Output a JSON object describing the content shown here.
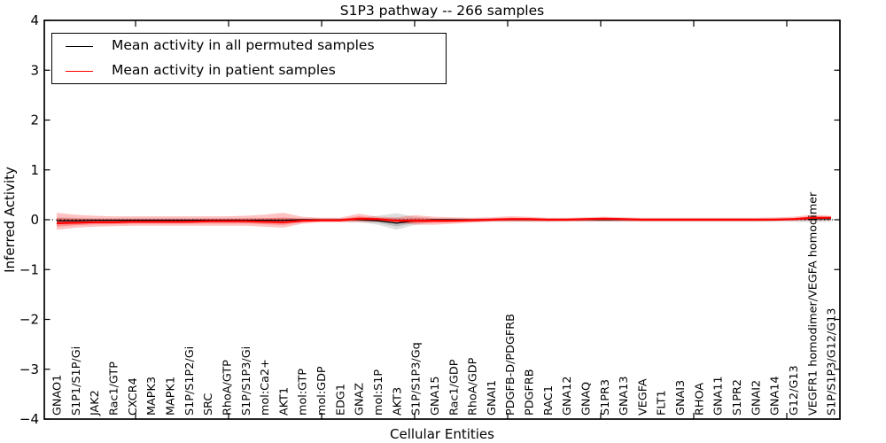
{
  "title": "S1P3 pathway -- 266 samples",
  "axes": {
    "xlabel": "Cellular Entities",
    "ylabel": "Inferred Activity",
    "ytick_labels": [
      "4",
      "3",
      "2",
      "1",
      "0",
      "−1",
      "−2",
      "−3",
      "−4"
    ],
    "ytick_values": [
      4,
      3,
      2,
      1,
      0,
      -1,
      -2,
      -3,
      -4
    ]
  },
  "legend": {
    "items": [
      {
        "label": "Mean activity in all permuted samples",
        "color": "#000000"
      },
      {
        "label": "Mean activity in patient samples",
        "color": "#ff0000"
      }
    ]
  },
  "chart_data": {
    "type": "line",
    "title": "S1P3 pathway -- 266 samples",
    "xlabel": "Cellular Entities",
    "ylabel": "Inferred Activity",
    "ylim": [
      -4,
      4
    ],
    "grid": false,
    "legend_position": "upper left",
    "zero_reference_line": true,
    "categories": [
      "GNAO1",
      "S1P1/S1P/Gi",
      "JAK2",
      "Rac1/GTP",
      "CXCR4",
      "MAPK3",
      "MAPK1",
      "S1P/S1P2/Gi",
      "SRC",
      "RhoA/GTP",
      "S1P/S1P3/Gi",
      "mol:Ca2+",
      "AKT1",
      "mol:GTP",
      "mol:GDP",
      "EDG1",
      "GNAZ",
      "mol:S1P",
      "AKT3",
      "S1P/S1P3/Gq",
      "GNA15",
      "Rac1/GDP",
      "RhoA/GDP",
      "GNAI1",
      "PDGFB-D/PDGFRB",
      "PDGFRB",
      "RAC1",
      "GNA12",
      "GNAQ",
      "S1PR3",
      "GNA13",
      "VEGFA",
      "FLT1",
      "GNAI3",
      "RHOA",
      "GNA11",
      "S1PR2",
      "GNAI2",
      "GNA14",
      "G12/G13",
      "VEGFR1 homodimer/VEGFA homodimer",
      "S1P/S1P3/G12/G13"
    ],
    "series": [
      {
        "name": "Mean activity in all permuted samples",
        "color": "#000000",
        "values": [
          -0.02,
          -0.02,
          -0.01,
          -0.01,
          -0.01,
          -0.01,
          -0.01,
          -0.01,
          -0.01,
          -0.01,
          -0.01,
          -0.01,
          -0.01,
          0,
          0,
          0,
          0,
          -0.02,
          -0.07,
          -0.02,
          0,
          0,
          0,
          0,
          0,
          0,
          0,
          0,
          0,
          0,
          0,
          0,
          0,
          0,
          0,
          0,
          0,
          0,
          0,
          0.01,
          0.02,
          0.02
        ]
      },
      {
        "name": "Mean activity in patient samples",
        "color": "#ff0000",
        "values": [
          -0.07,
          -0.06,
          -0.05,
          -0.05,
          -0.04,
          -0.04,
          -0.04,
          -0.04,
          -0.03,
          -0.03,
          -0.03,
          -0.04,
          -0.05,
          -0.02,
          -0.01,
          -0.01,
          0.02,
          0.01,
          -0.02,
          -0.02,
          -0.02,
          -0.02,
          -0.01,
          0,
          0.01,
          0.01,
          0,
          0,
          0.01,
          0.02,
          0.01,
          0,
          0,
          0,
          0,
          0,
          0,
          0,
          0,
          0.01,
          0.04,
          0.04
        ]
      }
    ],
    "bands": [
      {
        "name": "permuted-samples-range",
        "color": "rgba(0,0,0,0.13)",
        "inner_color": "rgba(0,0,0,0.15)",
        "upper": [
          0.05,
          0.04,
          0.03,
          0.03,
          0.03,
          0.03,
          0.03,
          0.03,
          0.03,
          0.03,
          0.03,
          0.03,
          0.03,
          0.03,
          0.03,
          0.03,
          0.04,
          0.08,
          0.13,
          0.06,
          0.03,
          0.03,
          0.03,
          0.03,
          0.03,
          0.03,
          0.03,
          0.03,
          0.03,
          0.03,
          0.03,
          0.03,
          0.03,
          0.03,
          0.03,
          0.03,
          0.03,
          0.03,
          0.03,
          0.03,
          0.05,
          0.04
        ],
        "lower": [
          -0.08,
          -0.06,
          -0.04,
          -0.04,
          -0.04,
          -0.04,
          -0.04,
          -0.04,
          -0.04,
          -0.04,
          -0.04,
          -0.04,
          -0.04,
          -0.04,
          -0.04,
          -0.04,
          -0.05,
          -0.1,
          -0.2,
          -0.1,
          -0.04,
          -0.04,
          -0.04,
          -0.04,
          -0.04,
          -0.04,
          -0.04,
          -0.04,
          -0.04,
          -0.04,
          -0.04,
          -0.04,
          -0.04,
          -0.04,
          -0.04,
          -0.04,
          -0.04,
          -0.04,
          -0.04,
          -0.04,
          -0.05,
          -0.04
        ]
      },
      {
        "name": "patient-samples-range",
        "color": "rgba(255,0,0,0.24)",
        "inner_color": "rgba(255,0,0,0.28)",
        "upper": [
          0.14,
          0.1,
          0.08,
          0.07,
          0.07,
          0.07,
          0.07,
          0.07,
          0.07,
          0.07,
          0.08,
          0.1,
          0.14,
          0.06,
          0.04,
          0.04,
          0.12,
          0.06,
          0.05,
          0.09,
          0.06,
          0.05,
          0.04,
          0.05,
          0.07,
          0.06,
          0.04,
          0.04,
          0.05,
          0.06,
          0.05,
          0.04,
          0.04,
          0.04,
          0.04,
          0.04,
          0.04,
          0.04,
          0.05,
          0.06,
          0.1,
          0.08
        ],
        "lower": [
          -0.2,
          -0.16,
          -0.14,
          -0.13,
          -0.12,
          -0.12,
          -0.12,
          -0.12,
          -0.12,
          -0.12,
          -0.12,
          -0.14,
          -0.16,
          -0.08,
          -0.05,
          -0.05,
          -0.05,
          -0.04,
          -0.06,
          -0.1,
          -0.1,
          -0.08,
          -0.06,
          -0.04,
          -0.04,
          -0.04,
          -0.04,
          -0.03,
          -0.03,
          -0.03,
          -0.03,
          -0.03,
          -0.03,
          -0.03,
          -0.03,
          -0.03,
          -0.03,
          -0.03,
          -0.02,
          -0.02,
          -0.02,
          -0.01
        ]
      }
    ]
  }
}
